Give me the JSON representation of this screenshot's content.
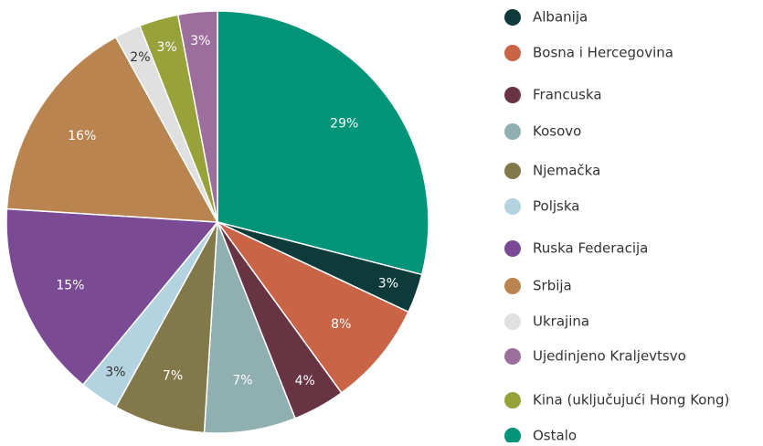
{
  "chart_data": {
    "type": "pie",
    "categories": [
      "Albanija",
      "Bosna i Hercegovina",
      "Francuska",
      "Kosovo",
      "Njemačka",
      "Poljska",
      "Ruska Federacija",
      "Srbija",
      "Ukrajina",
      "Ujedinjeno Kraljevtsvo",
      "Kina (uključujući Hong Kong)",
      "Ostalo"
    ],
    "values": [
      3,
      8,
      4,
      7,
      7,
      3,
      15,
      16,
      2,
      3,
      3,
      29
    ],
    "value_labels": [
      "3%",
      "8%",
      "4%",
      "7%",
      "7%",
      "3%",
      "15%",
      "16%",
      "2%",
      "3%",
      "3%",
      "29%"
    ],
    "colors": [
      "#0e3b3a",
      "#c96446",
      "#683343",
      "#8fafb0",
      "#82794a",
      "#b3d3e0",
      "#7a4b94",
      "#b9844f",
      "#e0e0e0",
      "#9c6e9c",
      "#97a23a",
      "#009479"
    ],
    "legend": "right"
  }
}
